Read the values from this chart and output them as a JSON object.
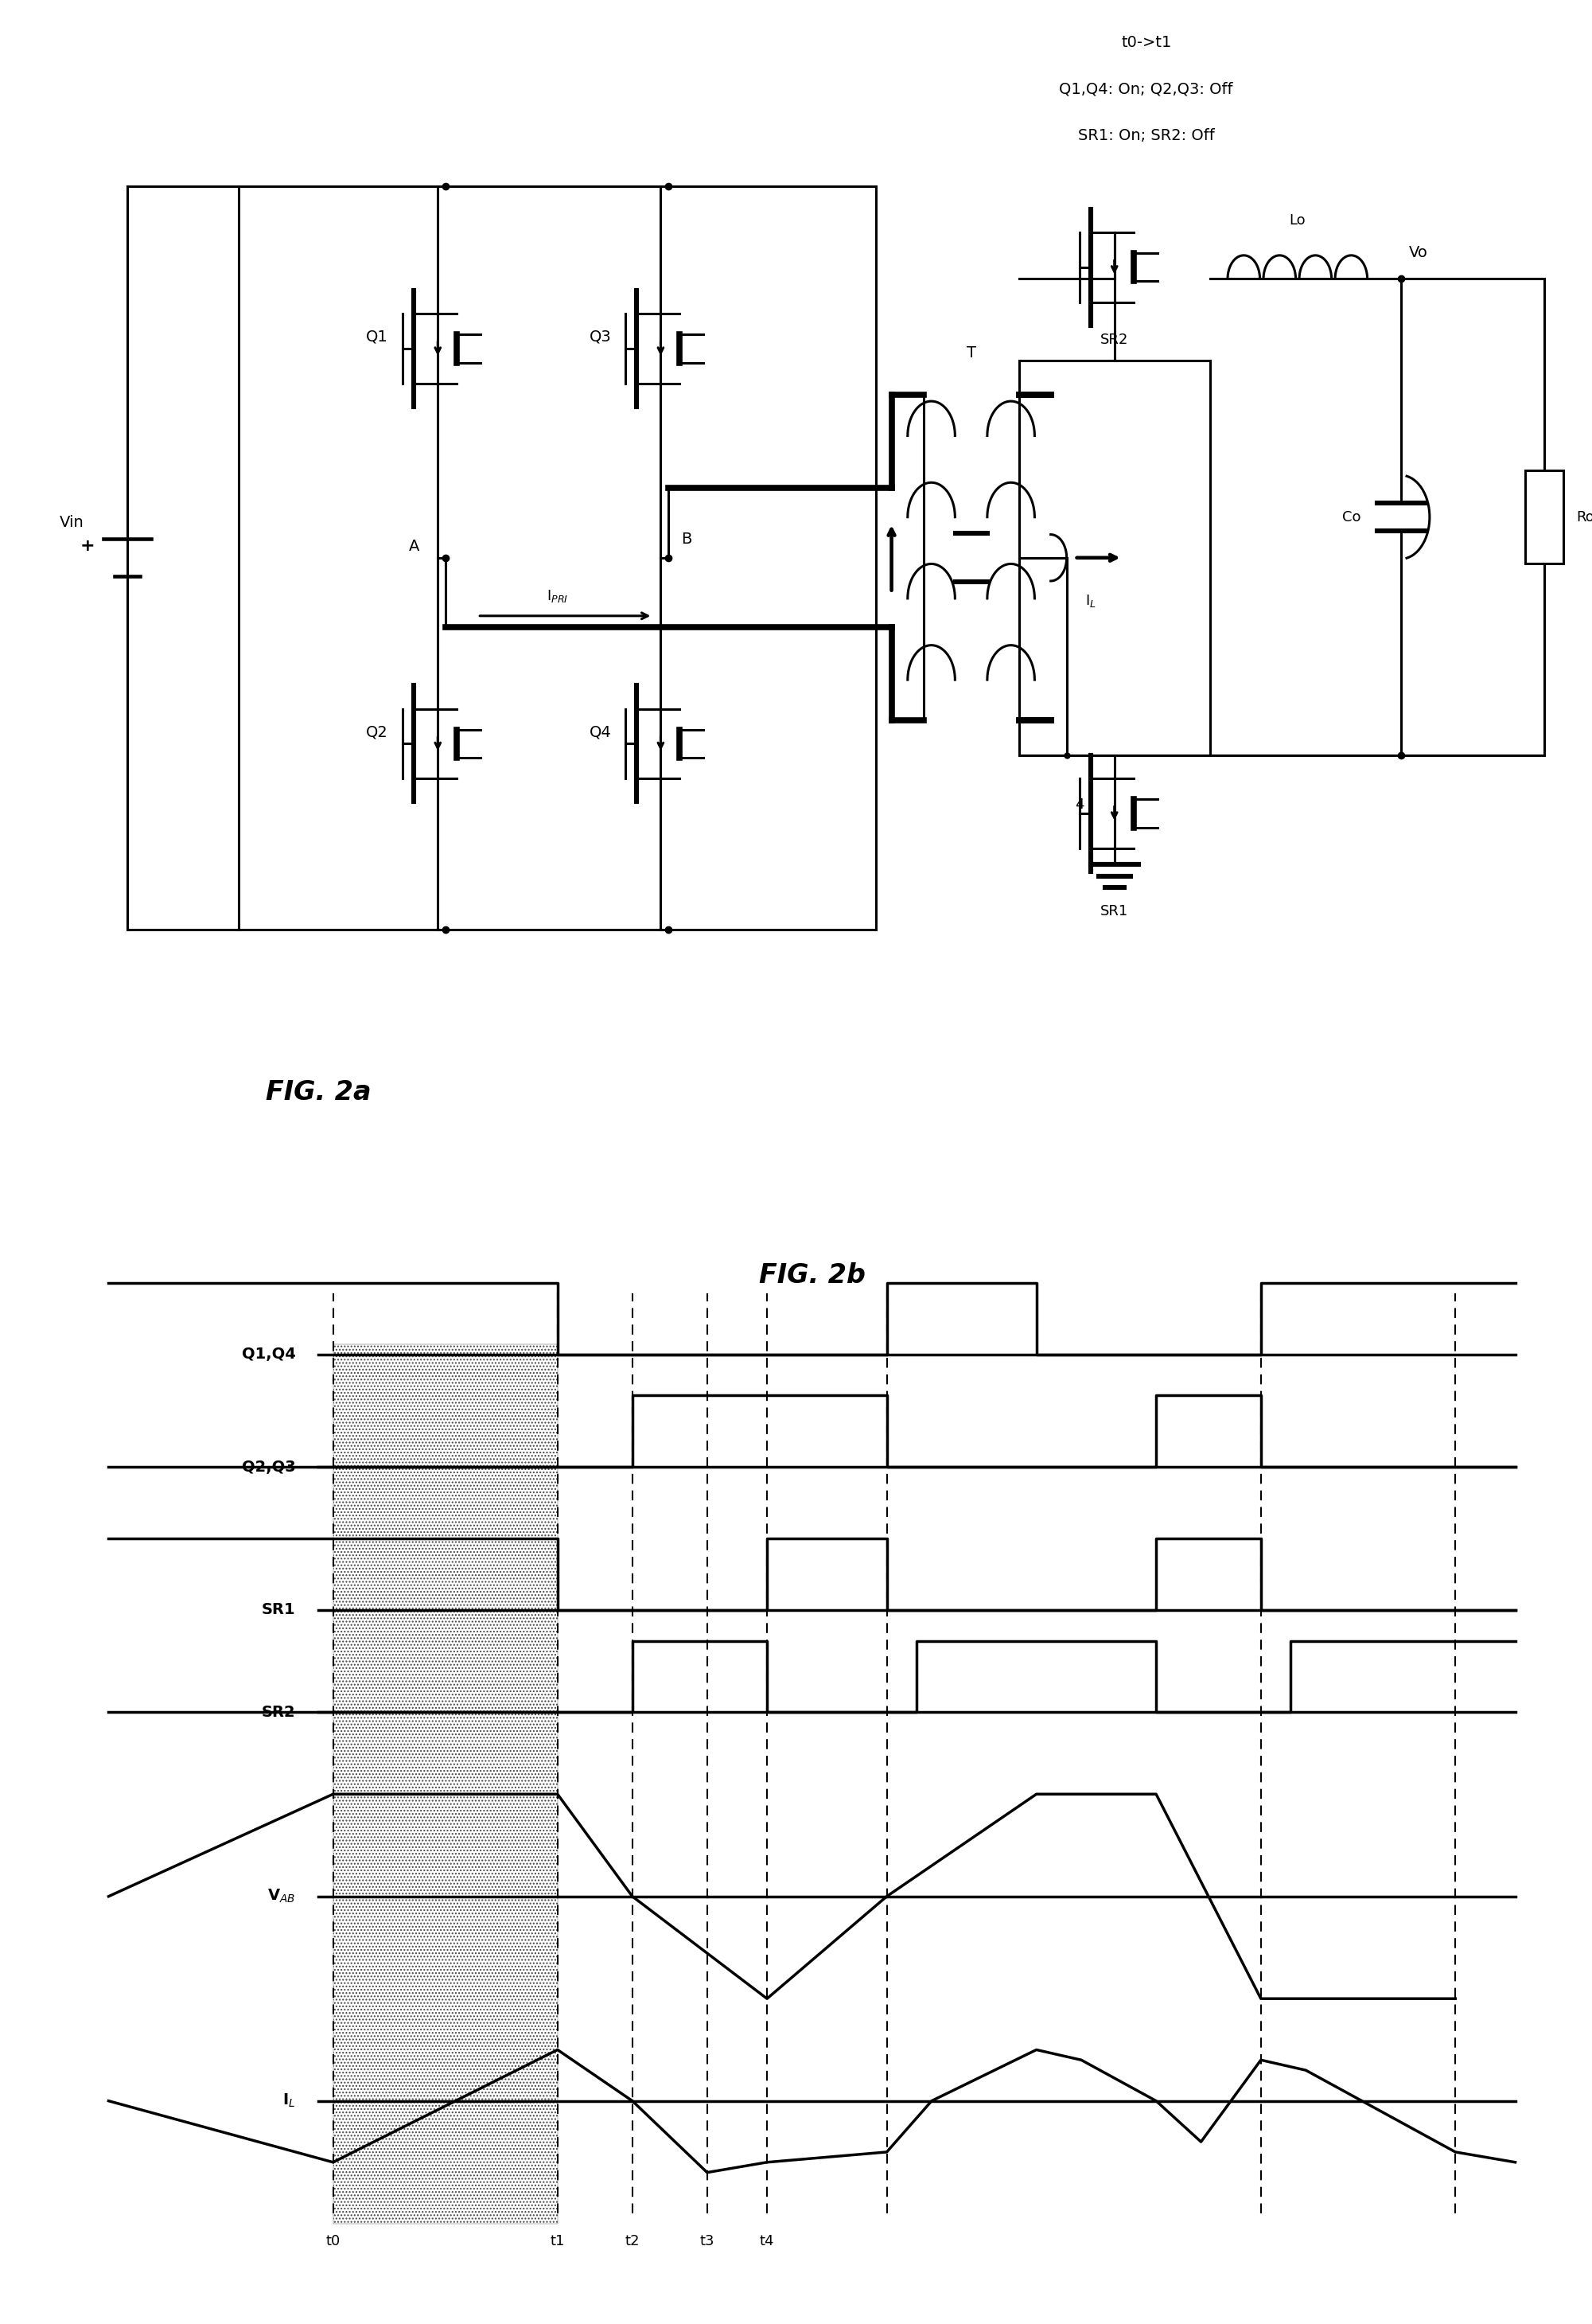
{
  "fig_width": 20.01,
  "fig_height": 29.2,
  "bg_color": "#ffffff",
  "annotation_lines": [
    "t0->t1",
    "Q1,Q4: On; Q2,Q3: Off",
    "SR1: On; SR2: Off"
  ],
  "fig2a_label": "FIG. 2a",
  "fig2b_label": "FIG. 2b",
  "waveform_labels": [
    "Q1,Q4",
    "Q2,Q3",
    "SR1",
    "SR2",
    "V_AB",
    "I_L"
  ],
  "time_labels": [
    "t0",
    "t1",
    "t2",
    "t3",
    "t4"
  ]
}
